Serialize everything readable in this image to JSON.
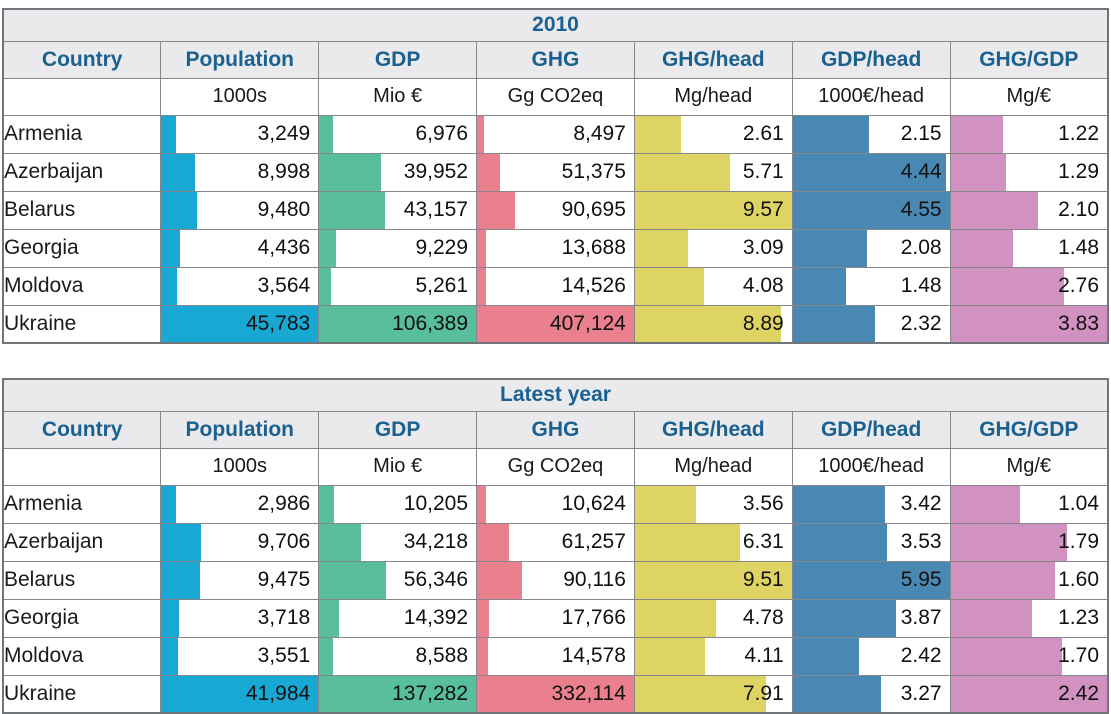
{
  "palette": {
    "header_text": "#1A6190",
    "header_bg": "#EAEAED",
    "border_outer": "#717478",
    "border_inner": "#85878B",
    "bar_colors": {
      "population": "#17A8D3",
      "gdp": "#58BE9C",
      "ghg": "#EA7F8E",
      "ghg_head": "#DED464",
      "gdp_head": "#4A88B4",
      "ghg_gdp": "#D192C1"
    }
  },
  "columns": [
    {
      "key": "country",
      "label": "Country",
      "unit": ""
    },
    {
      "key": "population",
      "label": "Population",
      "unit": "1000s"
    },
    {
      "key": "gdp",
      "label": "GDP",
      "unit": "Mio €"
    },
    {
      "key": "ghg",
      "label": "GHG",
      "unit": "Gg CO2eq"
    },
    {
      "key": "ghg_head",
      "label": "GHG/head",
      "unit": "Mg/head"
    },
    {
      "key": "gdp_head",
      "label": "GDP/head",
      "unit": "1000€/head"
    },
    {
      "key": "ghg_gdp",
      "label": "GHG/GDP",
      "unit": "Mg/€"
    }
  ],
  "tables": [
    {
      "title": "2010",
      "rows": [
        {
          "country": "Armenia",
          "population": "3,249",
          "gdp": "6,976",
          "ghg": "8,497",
          "ghg_head": "2.61",
          "gdp_head": "2.15",
          "ghg_gdp": "1.22"
        },
        {
          "country": "Azerbaijan",
          "population": "8,998",
          "gdp": "39,952",
          "ghg": "51,375",
          "ghg_head": "5.71",
          "gdp_head": "4.44",
          "ghg_gdp": "1.29"
        },
        {
          "country": "Belarus",
          "population": "9,480",
          "gdp": "43,157",
          "ghg": "90,695",
          "ghg_head": "9.57",
          "gdp_head": "4.55",
          "ghg_gdp": "2.10"
        },
        {
          "country": "Georgia",
          "population": "4,436",
          "gdp": "9,229",
          "ghg": "13,688",
          "ghg_head": "3.09",
          "gdp_head": "2.08",
          "ghg_gdp": "1.48"
        },
        {
          "country": "Moldova",
          "population": "3,564",
          "gdp": "5,261",
          "ghg": "14,526",
          "ghg_head": "4.08",
          "gdp_head": "1.48",
          "ghg_gdp": "2.76"
        },
        {
          "country": "Ukraine",
          "population": "45,783",
          "gdp": "106,389",
          "ghg": "407,124",
          "ghg_head": "8.89",
          "gdp_head": "2.32",
          "ghg_gdp": "3.83"
        }
      ]
    },
    {
      "title": "Latest year",
      "rows": [
        {
          "country": "Armenia",
          "population": "2,986",
          "gdp": "10,205",
          "ghg": "10,624",
          "ghg_head": "3.56",
          "gdp_head": "3.42",
          "ghg_gdp": "1.04"
        },
        {
          "country": "Azerbaijan",
          "population": "9,706",
          "gdp": "34,218",
          "ghg": "61,257",
          "ghg_head": "6.31",
          "gdp_head": "3.53",
          "ghg_gdp": "1.79"
        },
        {
          "country": "Belarus",
          "population": "9,475",
          "gdp": "56,346",
          "ghg": "90,116",
          "ghg_head": "9.51",
          "gdp_head": "5.95",
          "ghg_gdp": "1.60"
        },
        {
          "country": "Georgia",
          "population": "3,718",
          "gdp": "14,392",
          "ghg": "17,766",
          "ghg_head": "4.78",
          "gdp_head": "3.87",
          "ghg_gdp": "1.23"
        },
        {
          "country": "Moldova",
          "population": "3,551",
          "gdp": "8,588",
          "ghg": "14,578",
          "ghg_head": "4.11",
          "gdp_head": "2.42",
          "ghg_gdp": "1.70"
        },
        {
          "country": "Ukraine",
          "population": "41,984",
          "gdp": "137,282",
          "ghg": "332,114",
          "ghg_head": "7.91",
          "gdp_head": "3.27",
          "ghg_gdp": "2.42"
        }
      ]
    }
  ],
  "chart_data": [
    {
      "type": "table",
      "title": "2010",
      "categories": [
        "Armenia",
        "Azerbaijan",
        "Belarus",
        "Georgia",
        "Moldova",
        "Ukraine"
      ],
      "series": [
        {
          "name": "Population",
          "unit": "1000s",
          "values": [
            3249,
            8998,
            9480,
            4436,
            3564,
            45783
          ]
        },
        {
          "name": "GDP",
          "unit": "Mio €",
          "values": [
            6976,
            39952,
            43157,
            9229,
            5261,
            106389
          ]
        },
        {
          "name": "GHG",
          "unit": "Gg CO2eq",
          "values": [
            8497,
            51375,
            90695,
            13688,
            14526,
            407124
          ]
        },
        {
          "name": "GHG/head",
          "unit": "Mg/head",
          "values": [
            2.61,
            5.71,
            9.57,
            3.09,
            4.08,
            8.89
          ]
        },
        {
          "name": "GDP/head",
          "unit": "1000€/head",
          "values": [
            2.15,
            4.44,
            4.55,
            2.08,
            1.48,
            2.32
          ]
        },
        {
          "name": "GHG/GDP",
          "unit": "Mg/€",
          "values": [
            1.22,
            1.29,
            2.1,
            1.48,
            2.76,
            3.83
          ]
        }
      ],
      "layout": "in-cell data bars scaled to column maximum, bars start at left cell edge"
    },
    {
      "type": "table",
      "title": "Latest year",
      "categories": [
        "Armenia",
        "Azerbaijan",
        "Belarus",
        "Georgia",
        "Moldova",
        "Ukraine"
      ],
      "series": [
        {
          "name": "Population",
          "unit": "1000s",
          "values": [
            2986,
            9706,
            9475,
            3718,
            3551,
            41984
          ]
        },
        {
          "name": "GDP",
          "unit": "Mio €",
          "values": [
            10205,
            34218,
            56346,
            14392,
            8588,
            137282
          ]
        },
        {
          "name": "GHG",
          "unit": "Gg CO2eq",
          "values": [
            10624,
            61257,
            90116,
            17766,
            14578,
            332114
          ]
        },
        {
          "name": "GHG/head",
          "unit": "Mg/head",
          "values": [
            3.56,
            6.31,
            9.51,
            4.78,
            4.11,
            7.91
          ]
        },
        {
          "name": "GDP/head",
          "unit": "1000€/head",
          "values": [
            3.42,
            3.53,
            5.95,
            3.87,
            2.42,
            3.27
          ]
        },
        {
          "name": "GHG/GDP",
          "unit": "Mg/€",
          "values": [
            1.04,
            1.79,
            1.6,
            1.23,
            1.7,
            2.42
          ]
        }
      ],
      "layout": "in-cell data bars scaled to column maximum, bars start at left cell edge"
    }
  ]
}
